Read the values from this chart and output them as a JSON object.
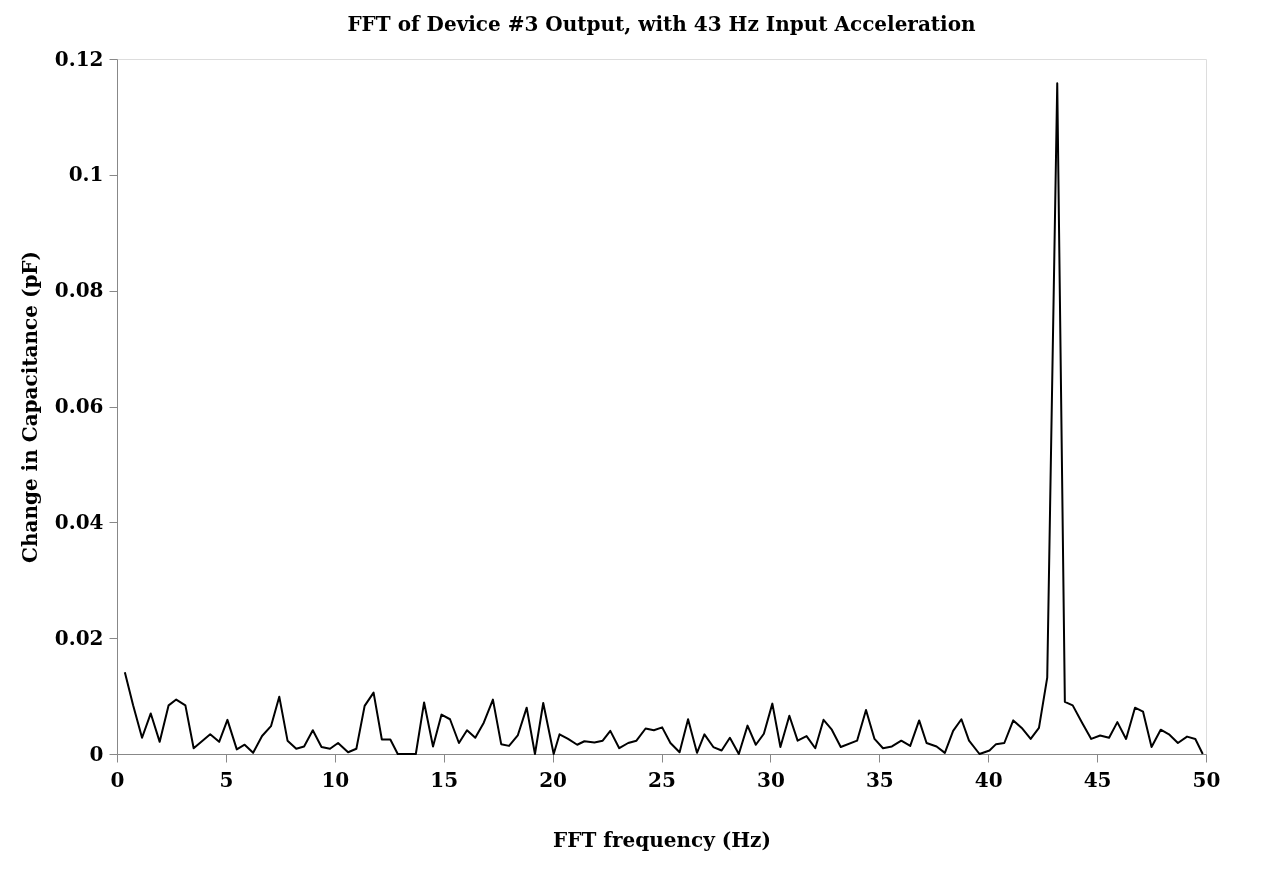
{
  "chart_data": {
    "type": "line",
    "title": "FFT of Device #3 Output, with 43 Hz Input Acceleration",
    "xlabel": "FFT frequency (Hz)",
    "ylabel": "Change in Capacitance (pF)",
    "xlim": [
      0,
      50
    ],
    "xticks": [
      0,
      5,
      10,
      15,
      20,
      25,
      30,
      35,
      40,
      45,
      50
    ],
    "ylim": [
      0,
      0.12
    ],
    "yticks": [
      0,
      0.02,
      0.04,
      0.06,
      0.08,
      0.1,
      0.12
    ],
    "grid": false,
    "marker": "none",
    "line_style": "solid",
    "series": [
      {
        "color": "#000000",
        "x": [
          0.36,
          0.74,
          1.15,
          1.55,
          1.96,
          2.37,
          2.72,
          3.14,
          3.52,
          4.28,
          4.69,
          5.07,
          5.5,
          5.86,
          6.25,
          6.66,
          7.07,
          7.45,
          7.83,
          8.23,
          8.59,
          8.99,
          9.39,
          9.78,
          10.15,
          10.61,
          10.99,
          11.37,
          11.78,
          12.16,
          12.55,
          12.89,
          13.3,
          13.72,
          14.1,
          14.51,
          14.9,
          15.29,
          15.7,
          16.07,
          16.45,
          16.84,
          17.26,
          17.64,
          18.0,
          18.4,
          18.81,
          19.19,
          19.57,
          20.05,
          20.32,
          20.71,
          21.13,
          21.46,
          21.92,
          22.3,
          22.65,
          23.06,
          23.47,
          23.85,
          24.27,
          24.65,
          25.03,
          25.41,
          25.83,
          26.22,
          26.63,
          26.97,
          27.38,
          27.76,
          28.14,
          28.55,
          28.95,
          29.33,
          29.7,
          30.09,
          30.46,
          30.87,
          31.25,
          31.66,
          32.06,
          32.44,
          32.82,
          33.23,
          33.98,
          34.39,
          34.78,
          35.17,
          35.58,
          36.01,
          36.42,
          36.83,
          37.17,
          37.63,
          38.01,
          38.39,
          38.77,
          39.12,
          39.6,
          40.06,
          40.36,
          40.74,
          41.15,
          41.54,
          41.95,
          42.33,
          42.71,
          43.17,
          43.52,
          43.88,
          44.31,
          44.73,
          45.14,
          45.55,
          45.93,
          46.33,
          46.74,
          47.11,
          47.5,
          47.92,
          48.3,
          48.71,
          49.13,
          49.51,
          49.85
        ],
        "values": [
          0.0141,
          0.0084,
          0.0028,
          0.007,
          0.0021,
          0.0084,
          0.0094,
          0.0084,
          0.001,
          0.0034,
          0.0021,
          0.0059,
          0.0008,
          0.0016,
          0.0002,
          0.0031,
          0.0048,
          0.0099,
          0.0023,
          0.0009,
          0.0013,
          0.0041,
          0.0012,
          0.0009,
          0.0019,
          0.0003,
          0.0009,
          0.0083,
          0.0106,
          0.0025,
          0.0025,
          0,
          0,
          0,
          0.0089,
          0.0013,
          0.0068,
          0.006,
          0.0019,
          0.0041,
          0.0028,
          0.0054,
          0.0094,
          0.0017,
          0.0014,
          0.0032,
          0.008,
          0,
          0.0088,
          0,
          0.0034,
          0.0026,
          0.0016,
          0.0022,
          0.002,
          0.0023,
          0.004,
          0.001,
          0.0019,
          0.0023,
          0.0044,
          0.0041,
          0.0046,
          0.0019,
          0.0003,
          0.006,
          0.0002,
          0.0034,
          0.0012,
          0.0006,
          0.0028,
          0,
          0.0049,
          0.0016,
          0.0035,
          0.0087,
          0.0012,
          0.0066,
          0.0023,
          0.0031,
          0.001,
          0.0059,
          0.0042,
          0.0012,
          0.0023,
          0.0076,
          0.0026,
          0.001,
          0.0013,
          0.0023,
          0.0014,
          0.0058,
          0.0019,
          0.0013,
          0.0002,
          0.004,
          0.006,
          0.0023,
          0,
          0.0006,
          0.0017,
          0.0019,
          0.0058,
          0.0045,
          0.0026,
          0.0045,
          0.0132,
          0.1158,
          0.009,
          0.0084,
          0.0054,
          0.0026,
          0.0032,
          0.0028,
          0.0055,
          0.0026,
          0.008,
          0.0073,
          0.0012,
          0.0042,
          0.0034,
          0.0019,
          0.003,
          0.0026,
          0
        ]
      }
    ]
  }
}
